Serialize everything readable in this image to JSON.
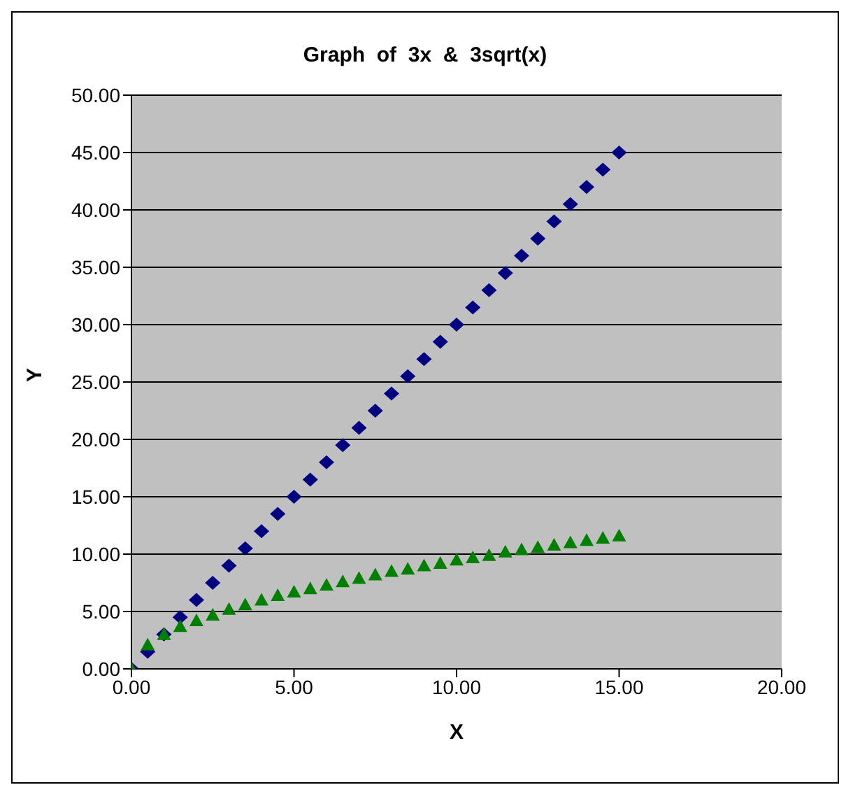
{
  "chart_data": {
    "type": "scatter",
    "title": "Graph  of  3x  &  3sqrt(x)",
    "xlabel": "X",
    "ylabel": "Y",
    "x": [
      0,
      0.5,
      1,
      1.5,
      2,
      2.5,
      3,
      3.5,
      4,
      4.5,
      5,
      5.5,
      6,
      6.5,
      7,
      7.5,
      8,
      8.5,
      9,
      9.5,
      10,
      10.5,
      11,
      11.5,
      12,
      12.5,
      13,
      13.5,
      14,
      14.5,
      15
    ],
    "series": [
      {
        "color": "#000080",
        "marker": "diamond",
        "values": [
          0,
          1.5,
          3,
          4.5,
          6,
          7.5,
          9,
          10.5,
          12,
          13.5,
          15,
          16.5,
          18,
          19.5,
          21,
          22.5,
          24,
          25.5,
          27,
          28.5,
          30,
          31.5,
          33,
          34.5,
          36,
          37.5,
          39,
          40.5,
          42,
          43.5,
          45
        ]
      },
      {
        "color": "#008000",
        "marker": "triangle",
        "values": [
          0,
          2.1,
          3,
          3.7,
          4.2,
          4.7,
          5.2,
          5.6,
          6,
          6.4,
          6.7,
          7.0,
          7.3,
          7.6,
          7.9,
          8.2,
          8.5,
          8.7,
          9,
          9.2,
          9.5,
          9.7,
          9.9,
          10.2,
          10.4,
          10.6,
          10.8,
          11.0,
          11.2,
          11.4,
          11.6
        ]
      }
    ],
    "xlim": [
      0,
      20
    ],
    "xticks": [
      {
        "value": 0,
        "label": "0.00"
      },
      {
        "value": 5,
        "label": "5.00"
      },
      {
        "value": 10,
        "label": "10.00"
      },
      {
        "value": 15,
        "label": "15.00"
      },
      {
        "value": 20,
        "label": "20.00"
      }
    ],
    "ylim": [
      0,
      50
    ],
    "yticks": [
      {
        "value": 0,
        "label": "0.00"
      },
      {
        "value": 5,
        "label": "5.00"
      },
      {
        "value": 10,
        "label": "10.00"
      },
      {
        "value": 15,
        "label": "15.00"
      },
      {
        "value": 20,
        "label": "20.00"
      },
      {
        "value": 25,
        "label": "25.00"
      },
      {
        "value": 30,
        "label": "30.00"
      },
      {
        "value": 35,
        "label": "35.00"
      },
      {
        "value": 40,
        "label": "40.00"
      },
      {
        "value": 45,
        "label": "45.00"
      },
      {
        "value": 50,
        "label": "50.00"
      }
    ],
    "grid": "y",
    "legend": false
  }
}
